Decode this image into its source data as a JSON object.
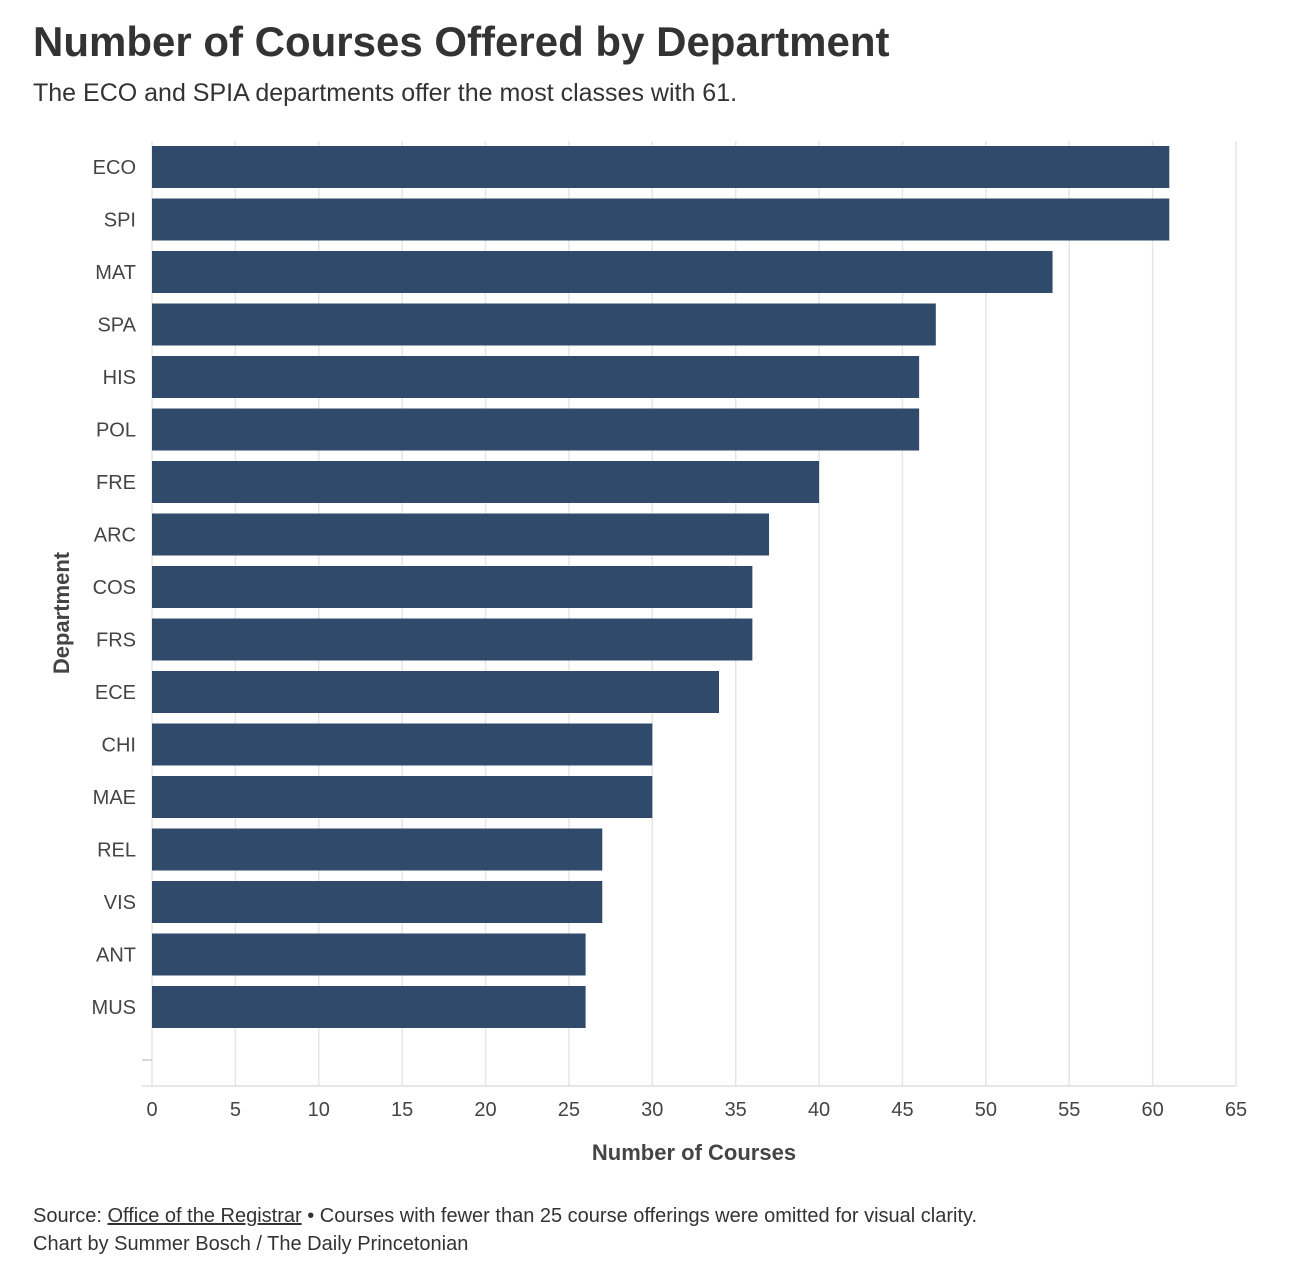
{
  "chart_data": {
    "type": "bar",
    "orientation": "horizontal",
    "title": "Number of Courses Offered by Department",
    "subtitle": "The ECO and SPIA departments offer the most classes with 61.",
    "xlabel": "Number of Courses",
    "ylabel": "Department",
    "xlim": [
      0,
      65
    ],
    "xticks": [
      0,
      5,
      10,
      15,
      20,
      25,
      30,
      35,
      40,
      45,
      50,
      55,
      60,
      65
    ],
    "grid": true,
    "bar_color": "#2f4a6b",
    "categories": [
      "ECO",
      "SPI",
      "MAT",
      "SPA",
      "HIS",
      "POL",
      "FRE",
      "ARC",
      "COS",
      "FRS",
      "ECE",
      "CHI",
      "MAE",
      "REL",
      "VIS",
      "ANT",
      "MUS"
    ],
    "values": [
      61,
      61,
      54,
      47,
      46,
      46,
      40,
      37,
      36,
      36,
      34,
      30,
      30,
      27,
      27,
      26,
      26
    ]
  },
  "footer": {
    "source_prefix": "Source: ",
    "source_link": "Office of the Registrar",
    "source_note": " • Courses with fewer than 25 course offerings were omitted for visual clarity.",
    "credit": "Chart by Summer Bosch / The Daily Princetonian"
  }
}
